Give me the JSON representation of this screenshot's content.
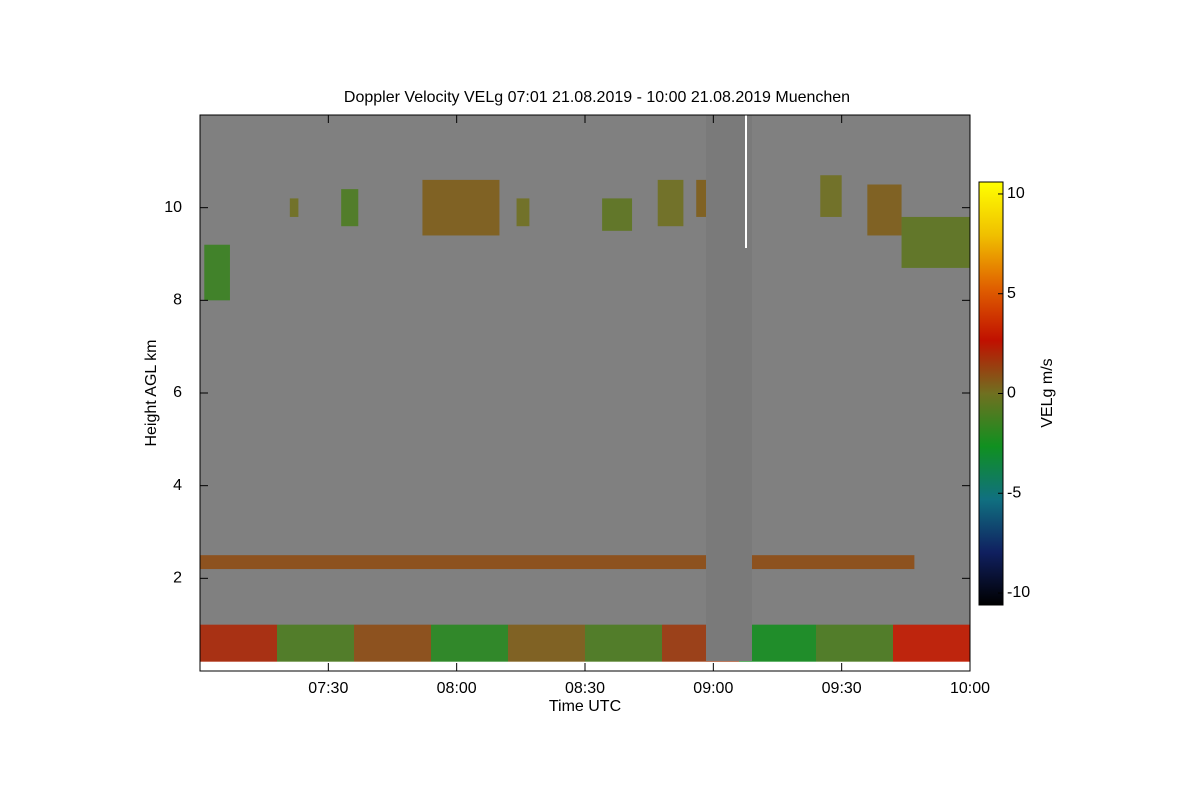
{
  "chart_data": {
    "type": "heatmap",
    "title": "Doppler Velocity VELg   07:01 21.08.2019 - 10:00 21.08.2019 Muenchen",
    "xlabel": "Time UTC",
    "ylabel": "Height AGL km",
    "colorbar_label": "VELg m/s",
    "xlim": [
      420,
      600
    ],
    "xticks": [
      {
        "value": 450,
        "label": "07:30"
      },
      {
        "value": 480,
        "label": "08:00"
      },
      {
        "value": 510,
        "label": "08:30"
      },
      {
        "value": 540,
        "label": "09:00"
      },
      {
        "value": 570,
        "label": "09:30"
      },
      {
        "value": 600,
        "label": "10:00"
      }
    ],
    "ylim": [
      0,
      12
    ],
    "yticks": [
      2,
      4,
      6,
      8,
      10
    ],
    "clim": [
      -10.6,
      10.6
    ],
    "cticks": [
      -10,
      -5,
      0,
      5,
      10
    ],
    "colormap": [
      "#000000",
      "#102060",
      "#107080",
      "#109020",
      "#707020",
      "#c01000",
      "#e06000",
      "#f0c000",
      "#ffff00"
    ],
    "cells": {
      "x0": [
        421,
        441,
        453,
        472,
        494,
        514,
        527,
        536,
        565,
        576,
        584,
        420,
        420,
        438,
        456,
        474,
        492,
        510,
        528,
        546,
        564,
        582
      ],
      "x1": [
        427,
        443,
        457,
        490,
        497,
        521,
        533,
        546,
        570,
        584,
        600,
        587,
        438,
        456,
        474,
        492,
        510,
        528,
        546,
        564,
        582,
        600
      ],
      "y0": [
        8.0,
        9.8,
        9.6,
        9.4,
        9.6,
        9.5,
        9.6,
        9.8,
        9.8,
        9.4,
        8.7,
        2.2,
        0.2,
        0.2,
        0.2,
        0.2,
        0.2,
        0.2,
        0.2,
        0.2,
        0.2,
        0.2
      ],
      "y1": [
        9.2,
        10.2,
        10.4,
        10.6,
        10.2,
        10.2,
        10.6,
        10.6,
        10.7,
        10.5,
        9.8,
        2.5,
        1.0,
        1.0,
        1.0,
        1.0,
        1.0,
        1.0,
        1.0,
        1.0,
        1.0,
        1.0
      ],
      "values": [
        -1.5,
        0,
        -1,
        0.5,
        0,
        -0.5,
        0,
        0.5,
        0,
        0.5,
        -0.5,
        1,
        2,
        -1,
        1,
        -2,
        0.5,
        -1,
        1.5,
        -2.5,
        -1,
        3
      ]
    }
  }
}
